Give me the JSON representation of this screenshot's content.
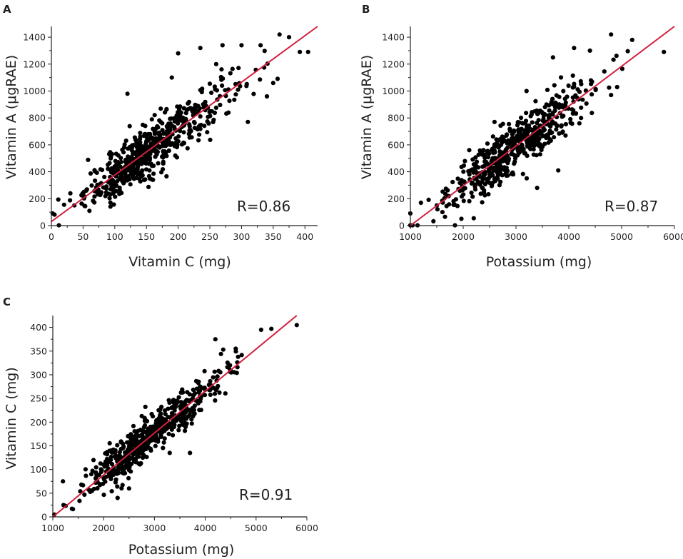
{
  "figure": {
    "background": "#ffffff",
    "point_color": "#000000",
    "fit_color": "#d21f3c"
  },
  "chart_data": [
    {
      "id": "A",
      "type": "scatter",
      "panel_label": "A",
      "title": "",
      "xlabel": "Vitamin C (mg)",
      "ylabel": "Vitamin A (μgRAE)",
      "xlim": [
        0,
        420
      ],
      "ylim": [
        0,
        1480
      ],
      "xticks": [
        0,
        50,
        100,
        150,
        200,
        250,
        300,
        350,
        400
      ],
      "yticks": [
        0,
        200,
        400,
        600,
        800,
        1000,
        1200,
        1400
      ],
      "annotation": "R=0.86",
      "fit_line": {
        "x0": 0,
        "y0": 30,
        "x1": 420,
        "y1": 1480
      },
      "cluster_center": [
        140,
        470
      ],
      "n_points": 560,
      "regression_slope": 3.45,
      "regression_intercept": 30,
      "residual_sd": 95,
      "x_center": 150,
      "x_sd": 60,
      "x_range": [
        5,
        410
      ],
      "outliers": [
        [
          2,
          90
        ],
        [
          20,
          155
        ],
        [
          30,
          240
        ],
        [
          360,
          1420
        ],
        [
          375,
          1400
        ],
        [
          392,
          1290
        ],
        [
          405,
          1290
        ],
        [
          330,
          1340
        ],
        [
          300,
          1340
        ],
        [
          270,
          1340
        ],
        [
          235,
          1320
        ],
        [
          120,
          980
        ],
        [
          190,
          1100
        ],
        [
          200,
          1280
        ],
        [
          260,
          1200
        ],
        [
          310,
          770
        ],
        [
          340,
          960
        ],
        [
          350,
          1060
        ],
        [
          55,
          260
        ],
        [
          60,
          110
        ]
      ]
    },
    {
      "id": "B",
      "type": "scatter",
      "panel_label": "B",
      "title": "",
      "xlabel": "Potassium (mg)",
      "ylabel": "Vitamin A (μgRAE)",
      "xlim": [
        1000,
        6000
      ],
      "ylim": [
        0,
        1480
      ],
      "xticks": [
        1000,
        2000,
        3000,
        4000,
        5000,
        6000
      ],
      "yticks": [
        0,
        200,
        400,
        600,
        800,
        1000,
        1200,
        1400
      ],
      "annotation": "R=0.87",
      "fit_line": {
        "x0": 1000,
        "y0": 0,
        "x1": 6000,
        "y1": 1480
      },
      "cluster_center": [
        2700,
        500
      ],
      "n_points": 560,
      "regression_slope": 0.296,
      "regression_intercept": -296,
      "residual_sd": 95,
      "x_center": 2850,
      "x_sd": 700,
      "x_range": [
        1000,
        5800
      ],
      "outliers": [
        [
          1000,
          90
        ],
        [
          1200,
          170
        ],
        [
          1500,
          150
        ],
        [
          5800,
          1290
        ],
        [
          5200,
          1380
        ],
        [
          4800,
          1420
        ],
        [
          4400,
          1300
        ],
        [
          4100,
          1320
        ],
        [
          3800,
          410
        ],
        [
          3400,
          280
        ],
        [
          4200,
          760
        ],
        [
          4800,
          970
        ],
        [
          3200,
          1000
        ],
        [
          3700,
          1250
        ]
      ]
    },
    {
      "id": "C",
      "type": "scatter",
      "panel_label": "C",
      "title": "",
      "xlabel": "Potassium (mg)",
      "ylabel": "Vitamin C (mg)",
      "xlim": [
        1000,
        6000
      ],
      "ylim": [
        0,
        425
      ],
      "xticks": [
        1000,
        2000,
        3000,
        4000,
        5000,
        6000
      ],
      "yticks": [
        0,
        50,
        100,
        150,
        200,
        250,
        300,
        350,
        400
      ],
      "annotation": "R=0.91",
      "fit_line": {
        "x0": 1000,
        "y0": 0,
        "x1": 5800,
        "y1": 425
      },
      "cluster_center": [
        2700,
        160
      ],
      "n_points": 560,
      "regression_slope": 0.0885,
      "regression_intercept": -88.5,
      "residual_sd": 22,
      "x_center": 2850,
      "x_sd": 700,
      "x_range": [
        1000,
        5800
      ],
      "outliers": [
        [
          1030,
          5
        ],
        [
          1200,
          75
        ],
        [
          1210,
          25
        ],
        [
          5800,
          405
        ],
        [
          5300,
          397
        ],
        [
          5100,
          395
        ],
        [
          4200,
          375
        ],
        [
          3700,
          135
        ],
        [
          2500,
          60
        ],
        [
          1800,
          120
        ],
        [
          4600,
          355
        ],
        [
          3300,
          135
        ]
      ]
    }
  ]
}
